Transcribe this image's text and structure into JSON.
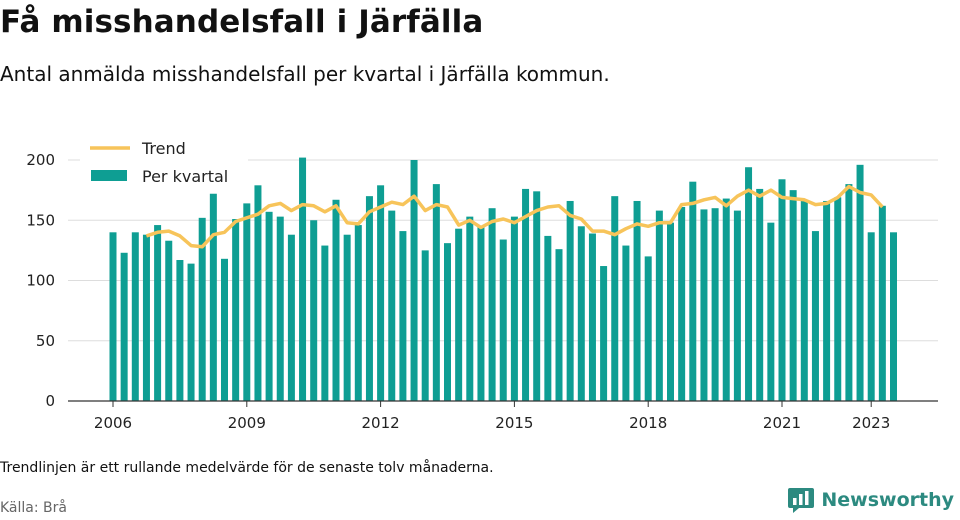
{
  "header": {
    "title": "Få misshandelsfall i Järfälla",
    "subtitle": "Antal anmälda misshandelsfall per kvartal i Järfälla kommun."
  },
  "footer": {
    "note": "Trendlinjen är ett rullande medelvärde för de senaste tolv månaderna.",
    "source": "Källa: Brå",
    "brand": "Newsworthy"
  },
  "colors": {
    "bar": "#0e9e93",
    "trend": "#f7c45a",
    "grid": "#dddddd",
    "brand": "#2c8a80"
  },
  "icons": {
    "brand_logo": "bar-chart-speech-icon"
  },
  "chart_data": {
    "type": "bar",
    "x_start": "2006 Q1",
    "x_tick_labels": [
      "2006",
      "2009",
      "2012",
      "2015",
      "2018",
      "2021",
      "2023"
    ],
    "y_tick_labels": [
      "0",
      "50",
      "100",
      "150",
      "200"
    ],
    "ylim": [
      0,
      200
    ],
    "legend": [
      "Trend",
      "Per kvartal"
    ],
    "legend_position": "top-left",
    "grid": true,
    "series": [
      {
        "name": "Per kvartal",
        "type": "bar",
        "values": [
          140,
          123,
          140,
          138,
          146,
          133,
          117,
          114,
          152,
          172,
          118,
          151,
          164,
          179,
          157,
          153,
          138,
          202,
          150,
          129,
          167,
          138,
          146,
          170,
          179,
          158,
          141,
          200,
          125,
          180,
          131,
          143,
          153,
          145,
          160,
          134,
          153,
          176,
          174,
          137,
          126,
          166,
          145,
          139,
          112,
          170,
          129,
          166,
          120,
          158,
          148,
          161,
          182,
          159,
          160,
          168,
          158,
          194,
          176,
          148,
          184,
          175,
          166,
          141,
          166,
          169,
          180,
          196,
          140,
          162,
          140
        ]
      },
      {
        "name": "Trend",
        "type": "line",
        "start_index": 3,
        "values": [
          137,
          140,
          141,
          137,
          129,
          128,
          138,
          140,
          149,
          152,
          155,
          162,
          164,
          158,
          163,
          162,
          157,
          162,
          148,
          147,
          157,
          161,
          165,
          163,
          170,
          158,
          163,
          161,
          146,
          150,
          144,
          149,
          151,
          148,
          153,
          158,
          161,
          162,
          154,
          151,
          141,
          141,
          138,
          143,
          147,
          145,
          148,
          148,
          163,
          164,
          167,
          169,
          162,
          170,
          175,
          170,
          175,
          169,
          168,
          167,
          163,
          164,
          169,
          178,
          173,
          171,
          161
        ]
      }
    ]
  }
}
